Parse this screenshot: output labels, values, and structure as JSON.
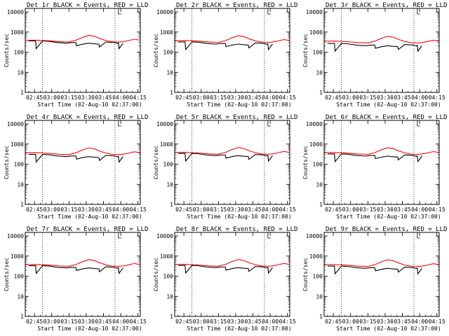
{
  "chart_data": {
    "type": "line",
    "panels": [
      {
        "title": "Det 1r BLACK = Events, RED = LLD",
        "dip": 0.0
      },
      {
        "title": "Det 2r BLACK = Events, RED = LLD",
        "dip": 0.1
      },
      {
        "title": "Det 3r BLACK = Events, RED = LLD",
        "dip": 0.25
      },
      {
        "title": "Det 4r BLACK = Events, RED = LLD",
        "dip": 0.15
      },
      {
        "title": "Det 5r BLACK = Events, RED = LLD",
        "dip": 0.05
      },
      {
        "title": "Det 6r BLACK = Events, RED = LLD",
        "dip": 0.1
      },
      {
        "title": "Det 7r BLACK = Events, RED = LLD",
        "dip": 0.08
      },
      {
        "title": "Det 8r BLACK = Events, RED = LLD",
        "dip": 0.05
      },
      {
        "title": "Det 9r BLACK = Events, RED = LLD",
        "dip": 0.12
      }
    ],
    "ylabel": "Counts/sec",
    "xlabel": "Start Time (02-Aug-10 02:37:00)",
    "x_ticks": [
      "02:45",
      "03:00",
      "03:15",
      "03:30",
      "03:45",
      "04:00",
      "04:15"
    ],
    "x_tick_minutes": [
      8,
      23,
      38,
      53,
      68,
      83,
      98
    ],
    "y_ticks": [
      "1",
      "10",
      "100",
      "1000",
      "10000"
    ],
    "y_tick_values": [
      1,
      10,
      100,
      1000,
      10000
    ],
    "yscale": "log",
    "ylim": [
      1,
      15000
    ],
    "xlim_minutes": [
      0,
      100
    ],
    "dotted_lines_minutes": [
      15,
      78
    ],
    "marker_minutes": 81,
    "series": [
      {
        "name": "Events",
        "color": "#000000",
        "x": [
          3,
          9,
          9.5,
          15,
          20,
          28,
          36,
          40,
          44,
          44.5,
          50,
          55,
          60,
          64,
          64.5,
          70,
          78,
          80,
          81,
          81.5,
          85
        ],
        "y": [
          360,
          360,
          150,
          360,
          350,
          300,
          280,
          300,
          300,
          210,
          250,
          280,
          260,
          250,
          180,
          320,
          300,
          270,
          290,
          150,
          280
        ]
      },
      {
        "name": "LLD",
        "color": "#ff0000",
        "x": [
          0,
          10,
          20,
          30,
          38,
          44,
          50,
          55,
          60,
          65,
          70,
          75,
          80,
          85,
          90,
          95,
          100
        ],
        "y": [
          390,
          395,
          370,
          330,
          320,
          390,
          550,
          680,
          620,
          470,
          380,
          330,
          320,
          330,
          380,
          440,
          390
        ]
      }
    ]
  }
}
